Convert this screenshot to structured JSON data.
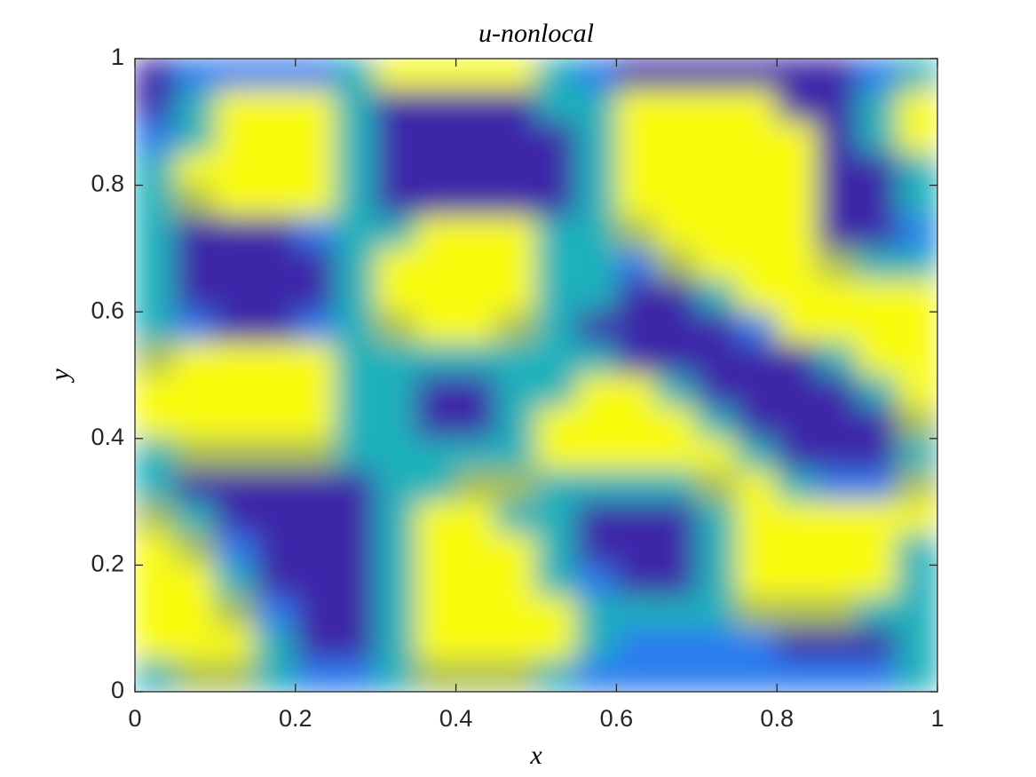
{
  "chart_data": {
    "type": "heatmap",
    "title": "u-nonlocal",
    "xlabel": "x",
    "ylabel": "y",
    "xlim": [
      0,
      1
    ],
    "ylim": [
      0,
      1
    ],
    "xticks": [
      0,
      0.2,
      0.4,
      0.6,
      0.8,
      1
    ],
    "yticks": [
      0,
      0.2,
      0.4,
      0.6,
      0.8,
      1
    ],
    "zlim": [
      -1,
      1
    ],
    "colormap": "parula",
    "z": [
      [
        -1,
        -0.5,
        -0.5,
        -0.5,
        -0.5,
        0,
        1,
        1,
        1,
        1,
        0,
        -0.5,
        -1,
        -1,
        -1,
        -1,
        -1,
        -1,
        -0.5,
        0
      ],
      [
        -1,
        0,
        1,
        1,
        1,
        0,
        -1,
        -1,
        -1,
        -1,
        0,
        0,
        1,
        1,
        1,
        1,
        -1,
        -1,
        0,
        1
      ],
      [
        -0.5,
        0,
        1,
        1,
        1,
        0,
        -1,
        -1,
        -1,
        -1,
        -1,
        0,
        1,
        1,
        1,
        1,
        1,
        -1,
        0,
        1
      ],
      [
        0,
        1,
        1,
        1,
        1,
        0,
        -1,
        -1,
        -1,
        -1,
        -1,
        0,
        1,
        1,
        1,
        1,
        1,
        -1,
        -1,
        0
      ],
      [
        0,
        0.5,
        1,
        1,
        1,
        0,
        -1,
        -1,
        -1,
        -1,
        -1,
        0,
        1,
        1,
        1,
        1,
        1,
        -1,
        -1,
        0
      ],
      [
        0,
        -1,
        -1,
        -1,
        -0.5,
        0,
        0,
        1,
        1,
        1,
        0,
        0,
        0.5,
        1,
        1,
        1,
        1,
        -1,
        -1,
        -0.5
      ],
      [
        0,
        -1,
        -1,
        -1,
        -1,
        0,
        1,
        1,
        1,
        1,
        0,
        0,
        -0.5,
        0.5,
        1,
        1,
        1,
        0.5,
        0,
        0
      ],
      [
        0,
        -1,
        -1,
        -1,
        -1,
        0,
        1,
        1,
        1,
        1,
        0,
        0,
        -1,
        -1,
        0,
        1,
        1,
        1,
        1,
        1
      ],
      [
        0,
        -0.5,
        -1,
        -1,
        -0.5,
        0,
        0.5,
        1,
        1,
        0.5,
        0,
        -1,
        -1,
        -1,
        -1,
        -0.5,
        1,
        1,
        1,
        1
      ],
      [
        0.5,
        1,
        1,
        1,
        1,
        0,
        0,
        0,
        0,
        0,
        0,
        0,
        -1,
        -1,
        -1,
        -1,
        -1,
        0,
        1,
        1
      ],
      [
        1,
        1,
        1,
        1,
        1,
        0,
        0,
        -1,
        -1,
        0,
        0,
        1,
        1,
        0,
        -1,
        -1,
        -1,
        -1,
        0,
        1
      ],
      [
        1,
        1,
        1,
        1,
        1,
        0,
        0,
        -1,
        -1,
        0,
        1,
        1,
        1,
        1,
        0,
        -1,
        -1,
        -1,
        -1,
        0.5
      ],
      [
        0,
        0.5,
        0.5,
        0.5,
        0.5,
        0,
        0,
        0,
        0,
        0,
        1,
        1,
        1,
        1,
        1,
        0,
        -1,
        -1,
        -1,
        0
      ],
      [
        0,
        -1,
        -1,
        -1,
        -1,
        -1,
        0,
        0,
        0.5,
        0.5,
        0,
        0,
        0,
        0,
        0.5,
        1,
        0,
        -0.5,
        -0.5,
        0.5
      ],
      [
        0.5,
        0,
        -1,
        -1,
        -1,
        -1,
        0,
        1,
        1,
        0,
        0,
        -1,
        -1,
        -1,
        0,
        1,
        1,
        1,
        1,
        1
      ],
      [
        1,
        0.5,
        -0.5,
        -1,
        -1,
        -1,
        0,
        1,
        1,
        1,
        0,
        -1,
        -1,
        -1,
        0,
        1,
        1,
        1,
        1,
        0
      ],
      [
        1,
        1,
        0,
        -1,
        -1,
        -1,
        0,
        1,
        1,
        1,
        0,
        -0.5,
        -1,
        -1,
        0,
        1,
        1,
        1,
        1,
        0
      ],
      [
        1,
        1,
        0.5,
        -0.5,
        -1,
        -1,
        0,
        1,
        1,
        1,
        1,
        0,
        0,
        0,
        0,
        0.5,
        0.5,
        0.5,
        0,
        0
      ],
      [
        1,
        1,
        1,
        0,
        -1,
        -1,
        0,
        1,
        1,
        1,
        1,
        0,
        -0.5,
        -0.5,
        -0.5,
        -0.5,
        -1,
        -1,
        -1,
        0
      ],
      [
        0,
        0.5,
        0.5,
        0,
        -0.5,
        -0.5,
        0,
        0.5,
        0.5,
        0.5,
        0,
        -0.5,
        -0.5,
        -0.5,
        -0.5,
        -0.5,
        -0.5,
        -0.5,
        -0.5,
        0
      ]
    ]
  }
}
